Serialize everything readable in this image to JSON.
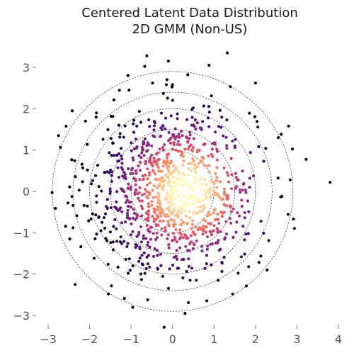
{
  "chart_data": {
    "type": "scatter",
    "title": "Centered Latent Data Distribution",
    "subtitle": "2D GMM (Non-US)",
    "xlabel": "",
    "ylabel": "",
    "xlim": [
      -3.3,
      4.2
    ],
    "ylim": [
      -3.3,
      3.4
    ],
    "x_ticks": [
      "−3",
      "−2",
      "−1",
      "0",
      "1",
      "2",
      "3",
      "4"
    ],
    "x_tick_values": [
      -3,
      -2,
      -1,
      0,
      1,
      2,
      3,
      4
    ],
    "y_ticks": [
      "−3",
      "−2",
      "−1",
      "0",
      "1",
      "2",
      "3"
    ],
    "y_tick_values": [
      -3,
      -2,
      -1,
      0,
      1,
      2,
      3
    ],
    "grid": false,
    "colormap": "magma",
    "ring_center": [
      0,
      0
    ],
    "ring_radii": [
      1.0,
      1.5,
      2.0,
      2.4,
      2.9
    ],
    "n_points": 1000,
    "distribution": {
      "kind": "gaussian-mixture-2d",
      "center": [
        0,
        0
      ],
      "std": 1.0
    },
    "outlier_points": [
      {
        "x": 3.8,
        "y": 0.22
      },
      {
        "x": -2.75,
        "y": 1.35
      },
      {
        "x": 2.62,
        "y": 1.38
      },
      {
        "x": 2.8,
        "y": 1.58
      },
      {
        "x": 1.32,
        "y": 3.35
      },
      {
        "x": -0.62,
        "y": 3.28
      },
      {
        "x": -0.1,
        "y": 3.15
      },
      {
        "x": 0.88,
        "y": 3.05
      },
      {
        "x": -2.35,
        "y": -2.25
      },
      {
        "x": -0.6,
        "y": -2.62
      },
      {
        "x": 0.3,
        "y": -2.95
      },
      {
        "x": 1.45,
        "y": -2.48
      },
      {
        "x": 1.1,
        "y": -2.15
      },
      {
        "x": -2.48,
        "y": -1.15
      },
      {
        "x": -2.4,
        "y": -0.88
      },
      {
        "x": 2.0,
        "y": 2.62
      },
      {
        "x": -1.05,
        "y": 2.45
      },
      {
        "x": 2.28,
        "y": -1.9
      },
      {
        "x": -2.1,
        "y": 1.7
      },
      {
        "x": 2.55,
        "y": 1.3
      }
    ],
    "colors": {
      "background": "#ffffff",
      "rings": "#000000",
      "tick_text": "#555555",
      "title_text": "#1a1a1a"
    }
  }
}
